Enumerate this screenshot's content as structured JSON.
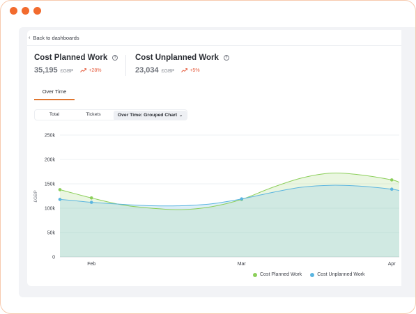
{
  "nav": {
    "back_label": "Back to dashboards"
  },
  "metrics": [
    {
      "title": "Cost Planned Work",
      "value": "35,195",
      "currency": "£GBP",
      "trend": "+28%"
    },
    {
      "title": "Cost Unplanned Work",
      "value": "23,034",
      "currency": "£GBP",
      "trend": "+5%"
    }
  ],
  "tabs": [
    {
      "label": "Over Time",
      "active": true
    }
  ],
  "view_options": [
    {
      "label": "Total"
    },
    {
      "label": "Tickets"
    },
    {
      "label": "Over Time: Grouped Chart",
      "active": true
    }
  ],
  "colors": {
    "accent": "#e0762f",
    "planned": "#8ccf5a",
    "unplanned": "#5bb5e0",
    "trend": "#e4583a"
  },
  "chart_data": {
    "type": "area",
    "ylabel": "£GBP",
    "ylim": [
      0,
      250000
    ],
    "yticks": [
      "0",
      "50k",
      "100k",
      "150k",
      "200k",
      "250k"
    ],
    "xticks": [
      {
        "label": "Feb",
        "x": 1.0
      },
      {
        "label": "Mar",
        "x": 2.0
      },
      {
        "label": "Apr",
        "x": 3.0
      }
    ],
    "xlim": [
      0.79,
      3.05
    ],
    "series": [
      {
        "name": "Cost Planned Work",
        "color": "#8ccf5a",
        "points": [
          [
            0.79,
            138000
          ],
          [
            1.0,
            121000
          ],
          [
            2.0,
            118000
          ],
          [
            3.0,
            158000
          ]
        ],
        "curve": [
          [
            0.79,
            138000
          ],
          [
            0.9,
            129000
          ],
          [
            1.0,
            121000
          ],
          [
            1.2,
            107000
          ],
          [
            1.4,
            100000
          ],
          [
            1.6,
            97000
          ],
          [
            1.8,
            103000
          ],
          [
            2.0,
            118000
          ],
          [
            2.2,
            142000
          ],
          [
            2.4,
            162000
          ],
          [
            2.6,
            172000
          ],
          [
            2.8,
            168000
          ],
          [
            3.0,
            158000
          ],
          [
            3.05,
            153000
          ]
        ]
      },
      {
        "name": "Cost Unplanned Work",
        "color": "#5bb5e0",
        "points": [
          [
            0.79,
            118000
          ],
          [
            1.0,
            112000
          ],
          [
            2.0,
            119000
          ],
          [
            3.0,
            139000
          ]
        ],
        "curve": [
          [
            0.79,
            118000
          ],
          [
            0.9,
            115000
          ],
          [
            1.0,
            112000
          ],
          [
            1.2,
            108000
          ],
          [
            1.4,
            105000
          ],
          [
            1.6,
            105000
          ],
          [
            1.8,
            109000
          ],
          [
            2.0,
            119000
          ],
          [
            2.2,
            132000
          ],
          [
            2.4,
            143000
          ],
          [
            2.6,
            147000
          ],
          [
            2.8,
            145000
          ],
          [
            3.0,
            139000
          ],
          [
            3.05,
            136000
          ]
        ]
      }
    ]
  },
  "legend": [
    {
      "label": "Cost Planned Work",
      "color": "#8ccf5a"
    },
    {
      "label": "Cost Unplanned Work",
      "color": "#5bb5e0"
    }
  ]
}
